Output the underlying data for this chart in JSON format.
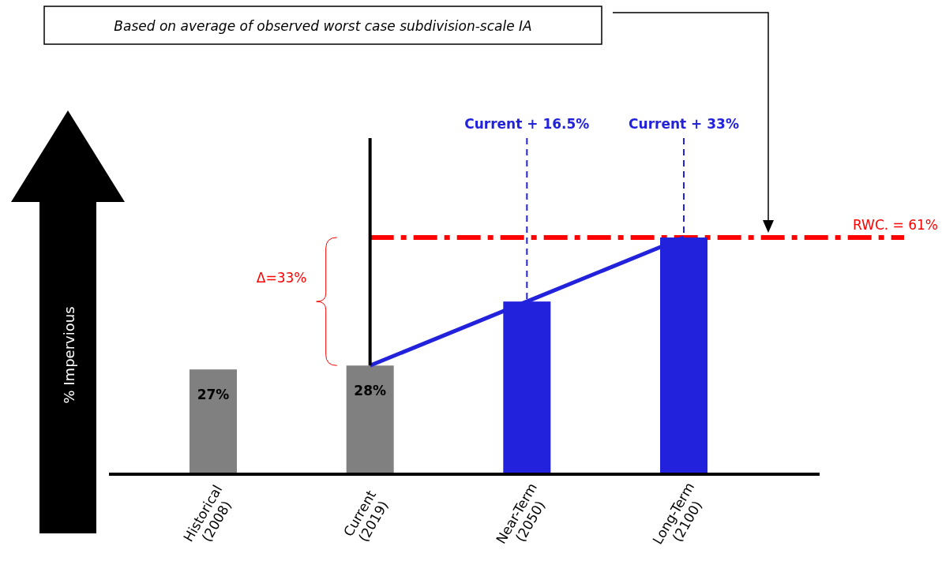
{
  "chart_data": {
    "type": "bar",
    "ylabel": "% Impervious",
    "categories": [
      "Historical\n(2008)",
      "Current\n(2019)",
      "Near-Term\n(2050)",
      "Long-Term\n(2100)"
    ],
    "series": [
      {
        "values": [
          27,
          28,
          44.5,
          61
        ],
        "colors": [
          "#808080",
          "#808080",
          "#2222dd",
          "#2222dd"
        ],
        "value_labels": [
          "27%",
          "28%",
          null,
          null
        ]
      },
      {
        "type": "line",
        "color": "#2222dd",
        "values": [
          null,
          28,
          44.5,
          61
        ]
      }
    ],
    "ref_lines": [
      {
        "axis": "y",
        "value": 61,
        "label": "RWC. = 61%",
        "color": "#ff0000",
        "line_style": "dashed"
      },
      {
        "axis": "x",
        "value": "Current\n(2019)",
        "color": "#000000",
        "line_style": "solid"
      },
      {
        "axis": "x",
        "value": "Near-Term\n(2050)",
        "label": "Current + 16.5%",
        "color": "#2222dd",
        "line_style": "dashed"
      },
      {
        "axis": "x",
        "value": "Long-Term\n(2100)",
        "label": "Current + 33%",
        "color": "#2222dd",
        "line_style": "dashed"
      }
    ],
    "annotations": [
      "Based on average of observed worst case subdivision-scale IA",
      "Δ=33%"
    ],
    "tick_labels": "x"
  }
}
